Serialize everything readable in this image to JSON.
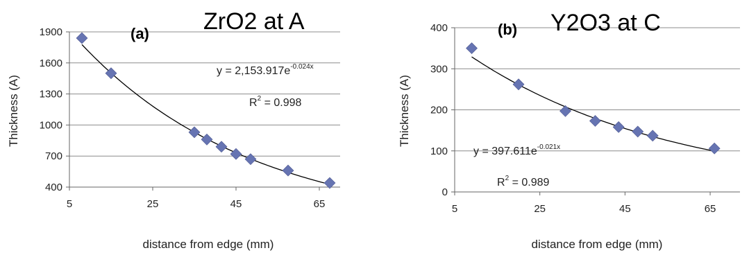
{
  "chart_data": [
    {
      "type": "scatter",
      "panel_label": "(a)",
      "title": "ZrO2 at A",
      "xlabel": "distance from edge (mm)",
      "ylabel": "Thickness (A)",
      "xlim": [
        5,
        70
      ],
      "ylim": [
        400,
        1900
      ],
      "xticks": [
        5,
        25,
        45,
        65
      ],
      "yticks": [
        400,
        700,
        1000,
        1300,
        1600,
        1900
      ],
      "grid": "horizontal",
      "marker": "diamond",
      "marker_color": "#6674b2",
      "points": [
        {
          "x": 8,
          "y": 1840
        },
        {
          "x": 15,
          "y": 1500
        },
        {
          "x": 35,
          "y": 930
        },
        {
          "x": 38,
          "y": 860
        },
        {
          "x": 41.5,
          "y": 790
        },
        {
          "x": 45,
          "y": 720
        },
        {
          "x": 48.5,
          "y": 670
        },
        {
          "x": 57.5,
          "y": 560
        },
        {
          "x": 67.5,
          "y": 440
        }
      ],
      "trendline": {
        "type": "exponential",
        "a": 2153.917,
        "b": -0.024,
        "x_range": [
          8,
          67.5
        ]
      },
      "equation": {
        "prefix": "y = 2,153.917e",
        "exponent": "-0.024x"
      },
      "r2": {
        "prefix": "R",
        "sup": "2",
        "suffix": " = 0.998"
      }
    },
    {
      "type": "scatter",
      "panel_label": "(b)",
      "title": "Y2O3 at C",
      "xlabel": "distance from edge (mm)",
      "ylabel": "Thickness (A)",
      "xlim": [
        5,
        72
      ],
      "ylim": [
        0,
        400
      ],
      "xticks": [
        5,
        25,
        45,
        65
      ],
      "yticks": [
        0,
        100,
        200,
        300,
        400
      ],
      "grid": "horizontal",
      "marker": "diamond",
      "marker_color": "#6674b2",
      "points": [
        {
          "x": 9,
          "y": 350
        },
        {
          "x": 20,
          "y": 262
        },
        {
          "x": 31,
          "y": 197
        },
        {
          "x": 38,
          "y": 173
        },
        {
          "x": 43.5,
          "y": 158
        },
        {
          "x": 48,
          "y": 147
        },
        {
          "x": 51.5,
          "y": 137
        },
        {
          "x": 66,
          "y": 106
        }
      ],
      "trendline": {
        "type": "exponential",
        "a": 397.611,
        "b": -0.021,
        "x_range": [
          9,
          66
        ]
      },
      "equation": {
        "prefix": "y = 397.611e",
        "exponent": "-0.021x"
      },
      "r2": {
        "prefix": "R",
        "sup": "2",
        "suffix": " = 0.989"
      }
    }
  ]
}
